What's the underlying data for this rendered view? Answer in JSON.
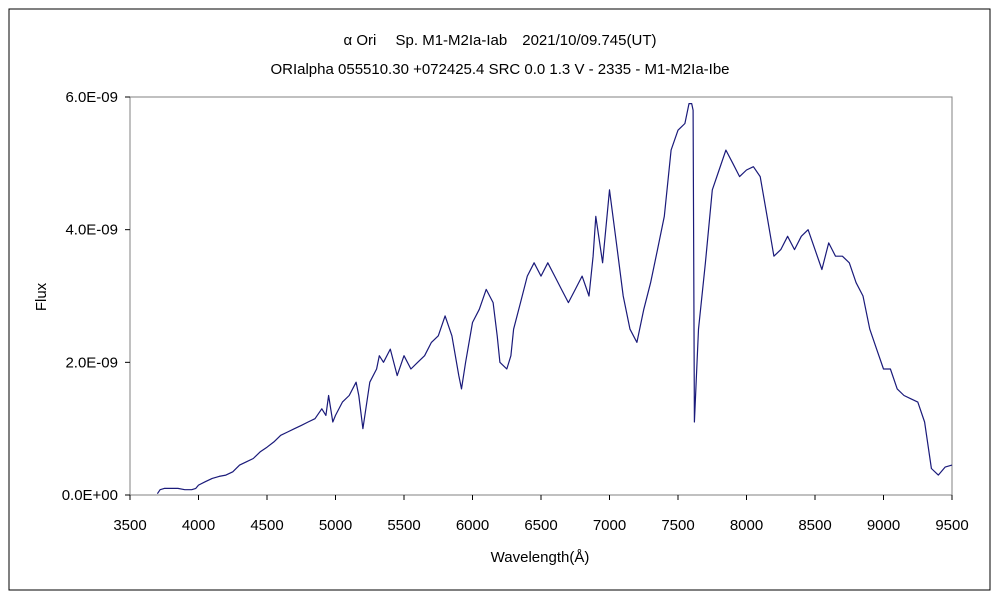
{
  "chart_data": {
    "type": "line",
    "title": "α Ori　 Sp. M1-M2Ia-Iab　2021/10/09.745(UT)",
    "subtitle": "ORIalpha 055510.30 +072425.4 SRC 0.0 1.3 V - 2335 - M1-M2Ia-Ibe",
    "xlabel": "Wavelength(Å)",
    "ylabel": "Flux",
    "xlim": [
      3500,
      9500
    ],
    "ylim": [
      0,
      6e-09
    ],
    "x_ticks": [
      3500,
      4000,
      4500,
      5000,
      5500,
      6000,
      6500,
      7000,
      7500,
      8000,
      8500,
      9000,
      9500
    ],
    "x_tick_labels": [
      "3500",
      "4000",
      "4500",
      "5000",
      "5500",
      "6000",
      "6500",
      "7000",
      "7500",
      "8000",
      "8500",
      "9000",
      "9500"
    ],
    "y_ticks": [
      0,
      2e-09,
      4e-09,
      6e-09
    ],
    "y_tick_labels": [
      "0.0E+00",
      "2.0E-09",
      "4.0E-09",
      "6.0E-09"
    ],
    "grid": false,
    "line_color": "#1a1a7a",
    "series": [
      {
        "x": [
          3700,
          3720,
          3750,
          3800,
          3850,
          3900,
          3950,
          3980,
          4000,
          4050,
          4100,
          4150,
          4200,
          4250,
          4300,
          4350,
          4400,
          4450,
          4500,
          4550,
          4600,
          4650,
          4700,
          4750,
          4800,
          4850,
          4900,
          4930,
          4950,
          4980,
          5000,
          5050,
          5100,
          5150,
          5170,
          5200,
          5250,
          5300,
          5320,
          5350,
          5400,
          5450,
          5500,
          5550,
          5600,
          5650,
          5700,
          5750,
          5800,
          5850,
          5900,
          5920,
          5950,
          6000,
          6050,
          6100,
          6150,
          6180,
          6200,
          6250,
          6280,
          6300,
          6350,
          6400,
          6450,
          6500,
          6550,
          6600,
          6650,
          6700,
          6750,
          6800,
          6850,
          6880,
          6900,
          6950,
          7000,
          7050,
          7100,
          7150,
          7200,
          7250,
          7300,
          7350,
          7400,
          7450,
          7500,
          7550,
          7580,
          7600,
          7610,
          7620,
          7650,
          7700,
          7750,
          7800,
          7850,
          7900,
          7950,
          8000,
          8050,
          8100,
          8150,
          8200,
          8250,
          8300,
          8350,
          8400,
          8450,
          8500,
          8550,
          8600,
          8650,
          8700,
          8750,
          8800,
          8850,
          8900,
          8950,
          9000,
          9050,
          9100,
          9150,
          9200,
          9250,
          9300,
          9350,
          9400,
          9450,
          9500
        ],
        "y": [
          2e-11,
          8e-11,
          1e-10,
          1e-10,
          1e-10,
          8e-11,
          8e-11,
          1e-10,
          1.5e-10,
          2e-10,
          2.5e-10,
          2.8e-10,
          3e-10,
          3.5e-10,
          4.5e-10,
          5e-10,
          5.5e-10,
          6.5e-10,
          7.2e-10,
          8e-10,
          9e-10,
          9.5e-10,
          1e-09,
          1.05e-09,
          1.1e-09,
          1.15e-09,
          1.3e-09,
          1.2e-09,
          1.5e-09,
          1.1e-09,
          1.2e-09,
          1.4e-09,
          1.5e-09,
          1.7e-09,
          1.5e-09,
          1e-09,
          1.7e-09,
          1.9e-09,
          2.1e-09,
          2e-09,
          2.2e-09,
          1.8e-09,
          2.1e-09,
          1.9e-09,
          2e-09,
          2.1e-09,
          2.3e-09,
          2.4e-09,
          2.7e-09,
          2.4e-09,
          1.8e-09,
          1.6e-09,
          2e-09,
          2.6e-09,
          2.8e-09,
          3.1e-09,
          2.9e-09,
          2.4e-09,
          2e-09,
          1.9e-09,
          2.1e-09,
          2.5e-09,
          2.9e-09,
          3.3e-09,
          3.5e-09,
          3.3e-09,
          3.5e-09,
          3.3e-09,
          3.1e-09,
          2.9e-09,
          3.1e-09,
          3.3e-09,
          3e-09,
          3.6e-09,
          4.2e-09,
          3.5e-09,
          4.6e-09,
          3.8e-09,
          3e-09,
          2.5e-09,
          2.3e-09,
          2.8e-09,
          3.2e-09,
          3.7e-09,
          4.2e-09,
          5.2e-09,
          5.5e-09,
          5.6e-09,
          5.9e-09,
          5.9e-09,
          5.8e-09,
          1.1e-09,
          2.5e-09,
          3.5e-09,
          4.6e-09,
          4.9e-09,
          5.2e-09,
          5e-09,
          4.8e-09,
          4.9e-09,
          4.95e-09,
          4.8e-09,
          4.2e-09,
          3.6e-09,
          3.7e-09,
          3.9e-09,
          3.7e-09,
          3.9e-09,
          4e-09,
          3.7e-09,
          3.4e-09,
          3.8e-09,
          3.6e-09,
          3.6e-09,
          3.5e-09,
          3.2e-09,
          3e-09,
          2.5e-09,
          2.2e-09,
          1.9e-09,
          1.9e-09,
          1.6e-09,
          1.5e-09,
          1.45e-09,
          1.4e-09,
          1.1e-09,
          4e-10,
          3e-10,
          4.2e-10,
          4.5e-10
        ]
      }
    ]
  }
}
